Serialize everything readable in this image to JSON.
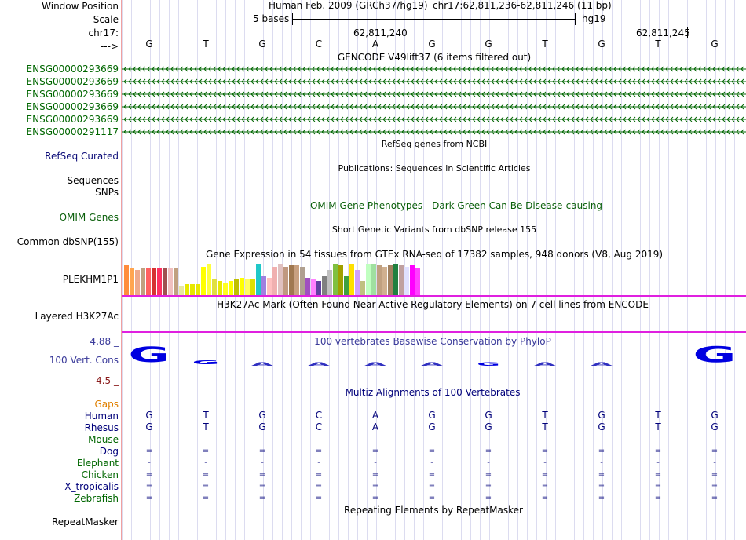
{
  "colors": {
    "gencode": "#006600",
    "refseq": "#0c0c78",
    "omim": "#0a5f0a",
    "h3k27ac": "#e020e0",
    "conservation": "#3a3a9a",
    "cons_min": "#8a1a1a",
    "gaps": "#e08000",
    "multiz": "#00007a",
    "gridline": "#dcdcf0",
    "separator": "#f0a0a0"
  },
  "labels": {
    "window_position": "Window Position",
    "scale": "Scale",
    "chr": "chr17:",
    "arrow": "--->",
    "gencode_rows": [
      "ENSG00000293669",
      "ENSG00000293669",
      "ENSG00000293669",
      "ENSG00000293669",
      "ENSG00000293669",
      "ENSG00000291117"
    ],
    "refseq": "RefSeq Curated",
    "sequences": "Sequences",
    "snps": "SNPs",
    "omim": "OMIM Genes",
    "dbsnp": "Common dbSNP(155)",
    "gtex": "PLEKHM1P1",
    "h3k27ac": "Layered H3K27Ac",
    "cons_max": "4.88 _",
    "cons": "100 Vert. Cons",
    "cons_min": "-4.5 _",
    "gaps": "Gaps",
    "species": [
      "Human",
      "Rhesus",
      "Mouse",
      "Dog",
      "Elephant",
      "Chicken",
      "X_tropicalis",
      "Zebrafish"
    ],
    "repeatmasker": "RepeatMasker"
  },
  "header": {
    "assembly": "Human Feb. 2009 (GRCh37/hg19)",
    "position": "chr17:62,811,236-62,811,246 (11 bp)",
    "scale_text": "5 bases",
    "scale_db": "hg19",
    "coord1": "62,811,240",
    "coord2": "62,811,245"
  },
  "bases": [
    "G",
    "T",
    "G",
    "C",
    "A",
    "G",
    "G",
    "T",
    "G",
    "T",
    "G"
  ],
  "titles": {
    "gencode": "GENCODE V49lift37 (6 items filtered out)",
    "refseq": "RefSeq genes from NCBI",
    "publications": "Publications: Sequences in Scientific Articles",
    "omim": "OMIM Gene Phenotypes - Dark Green Can Be Disease-causing",
    "dbsnp": "Short Genetic Variants from dbSNP release 155",
    "gtex": "Gene Expression in 54 tissues from GTEx RNA-seq of 17382 samples, 948 donors (V8, Aug 2019)",
    "h3k27ac": "H3K27Ac Mark (Often Found Near Active Regulatory Elements) on 7 cell lines from ENCODE",
    "cons": "100 vertebrates Basewise Conservation by PhyloP",
    "multiz": "Multiz Alignments of 100 Vertebrates",
    "repeatmasker": "Repeating Elements by RepeatMasker"
  },
  "alignments": {
    "Human": [
      "G",
      "T",
      "G",
      "C",
      "A",
      "G",
      "G",
      "T",
      "G",
      "T",
      "G"
    ],
    "Rhesus": [
      "G",
      "T",
      "G",
      "C",
      "A",
      "G",
      "G",
      "T",
      "G",
      "T",
      "G"
    ],
    "Dog": [
      "=",
      "=",
      "=",
      "=",
      "=",
      "=",
      "=",
      "=",
      "=",
      "=",
      "="
    ],
    "Elephant": [
      "-",
      "-",
      "-",
      "-",
      "-",
      "-",
      "-",
      "-",
      "-",
      "-",
      "-"
    ],
    "Chicken": [
      "=",
      "=",
      "=",
      "=",
      "=",
      "=",
      "=",
      "=",
      "=",
      "=",
      "="
    ],
    "X_tropicalis": [
      "=",
      "=",
      "=",
      "=",
      "=",
      "=",
      "=",
      "=",
      "=",
      "=",
      "="
    ],
    "Zebrafish": [
      "=",
      "=",
      "=",
      "=",
      "=",
      "=",
      "=",
      "=",
      "=",
      "=",
      "="
    ]
  },
  "gtex_bars": {
    "colors": [
      "#ff8c3c",
      "#ffa54f",
      "#eea98b",
      "#c0a080",
      "#ff6060",
      "#d63232",
      "#ff3060",
      "#a05050",
      "#f0c0c0",
      "#c0a080",
      "#e8e8a0",
      "#e8e800",
      "#e8e800",
      "#e8e800",
      "#ffff00",
      "#ffff40",
      "#e0e040",
      "#e8e800",
      "#ffff20",
      "#ffff00",
      "#c0c000",
      "#ffff00",
      "#ffff60",
      "#e0e000",
      "#20c8c8",
      "#a080e0",
      "#ffc0c0",
      "#f0b0b0",
      "#e0c0c0",
      "#c09880",
      "#a07850",
      "#c8a080",
      "#b0a090",
      "#a050c0",
      "#ff80ff",
      "#6040a0",
      "#808080",
      "#c0c0c0",
      "#80c040",
      "#a0a000",
      "#40a040",
      "#ffe000",
      "#d0a0ff",
      "#c0c080",
      "#c0ffc0",
      "#a0e0a0",
      "#c0a080",
      "#d0b090",
      "#a08060",
      "#208040",
      "#c0a0a0",
      "#e0e0ff",
      "#ff00ff",
      "#ff40ff"
    ],
    "values": [
      0.95,
      0.85,
      0.8,
      0.85,
      0.85,
      0.85,
      0.85,
      0.85,
      0.85,
      0.85,
      0.3,
      0.35,
      0.35,
      0.35,
      0.9,
      1.0,
      0.5,
      0.45,
      0.4,
      0.45,
      0.5,
      0.55,
      0.5,
      0.5,
      1.0,
      0.6,
      0.55,
      0.9,
      1.0,
      0.9,
      0.95,
      0.95,
      0.9,
      0.55,
      0.5,
      0.45,
      0.6,
      0.8,
      1.0,
      0.95,
      0.6,
      1.0,
      0.8,
      0.45,
      1.0,
      1.0,
      0.95,
      0.9,
      0.95,
      1.0,
      0.95,
      0.9,
      0.95,
      0.85
    ]
  },
  "cons_logo": [
    "G",
    "G",
    "A",
    "A",
    "A",
    "A",
    "G",
    "A",
    "A",
    "A",
    "G"
  ],
  "cons_logo_levels": [
    0.95,
    0.25,
    0.05,
    0.02,
    0.02,
    0.02,
    0.05,
    0.12,
    0.05,
    0,
    1.0
  ]
}
